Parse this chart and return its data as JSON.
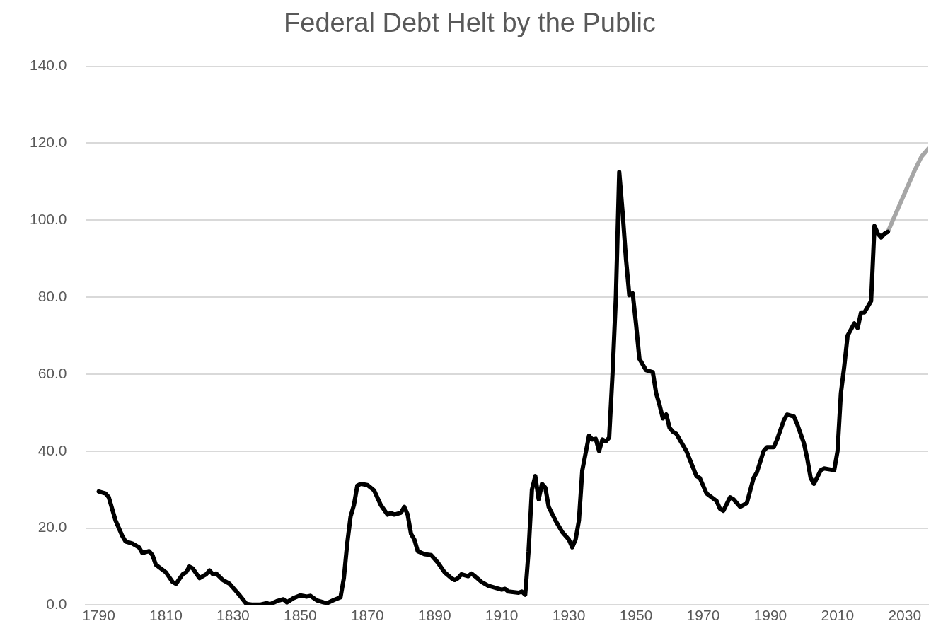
{
  "chart_data": {
    "type": "line",
    "title": "Federal Debt Helt by the Public",
    "xlim": [
      1786,
      2037
    ],
    "xticks": [
      1790,
      1810,
      1830,
      1850,
      1870,
      1890,
      1910,
      1930,
      1950,
      1970,
      1990,
      2010,
      2030
    ],
    "ylim": [
      0,
      140
    ],
    "yticks": [
      {
        "value": 0,
        "label": "0.0"
      },
      {
        "value": 20,
        "label": "20.0"
      },
      {
        "value": 40,
        "label": "40.0"
      },
      {
        "value": 60,
        "label": "60.0"
      },
      {
        "value": 80,
        "label": "80.0"
      },
      {
        "value": 100,
        "label": "100.0"
      },
      {
        "value": 120,
        "label": "120.0"
      },
      {
        "value": 140,
        "label": "140.0"
      }
    ],
    "grid": "y",
    "legend": false,
    "marker": "none",
    "line_style": "solid",
    "series": [
      {
        "color": "#000000",
        "x": [
          1790,
          1792,
          1793,
          1795,
          1797,
          1798,
          1800,
          1802,
          1803,
          1805,
          1806,
          1807,
          1810,
          1812,
          1813,
          1815,
          1816,
          1817,
          1818,
          1820,
          1822,
          1823,
          1824,
          1825,
          1827,
          1829,
          1831,
          1832,
          1834,
          1836,
          1838,
          1840,
          1841,
          1843,
          1845,
          1846,
          1848,
          1850,
          1852,
          1853,
          1855,
          1857,
          1858,
          1860,
          1862,
          1863,
          1864,
          1865,
          1866,
          1867,
          1868,
          1870,
          1872,
          1874,
          1876,
          1877,
          1878,
          1880,
          1881,
          1882,
          1883,
          1884,
          1885,
          1887,
          1889,
          1891,
          1893,
          1895,
          1896,
          1897,
          1898,
          1900,
          1901,
          1902,
          1904,
          1906,
          1910,
          1911,
          1912,
          1915,
          1916,
          1917,
          1918,
          1919,
          1920,
          1921,
          1922,
          1923,
          1924,
          1926,
          1928,
          1930,
          1931,
          1932,
          1933,
          1934,
          1936,
          1937,
          1938,
          1939,
          1940,
          1941,
          1942,
          1943,
          1944,
          1945,
          1946,
          1947,
          1948,
          1949,
          1950,
          1951,
          1953,
          1955,
          1956,
          1957,
          1958,
          1959,
          1960,
          1961,
          1962,
          1965,
          1968,
          1969,
          1971,
          1974,
          1975,
          1976,
          1978,
          1979,
          1981,
          1983,
          1985,
          1986,
          1988,
          1989,
          1991,
          1992,
          1994,
          1995,
          1997,
          1998,
          2000,
          2001,
          2002,
          2003,
          2005,
          2006,
          2008,
          2009,
          2010,
          2011,
          2012,
          2013,
          2015,
          2016,
          2017,
          2018,
          2020,
          2021,
          2022,
          2023,
          2024,
          2025
        ],
        "values": [
          29.5,
          29,
          28,
          22,
          18,
          16.5,
          16,
          15,
          13.5,
          14,
          13,
          10.5,
          8.5,
          6,
          5.5,
          8,
          8.5,
          10,
          9.5,
          7,
          8,
          9,
          8,
          8.2,
          6.5,
          5.5,
          3.5,
          2.5,
          0.3,
          0.1,
          0.1,
          0.5,
          0.2,
          1,
          1.5,
          0.7,
          1.8,
          2.5,
          2.2,
          2.4,
          1.2,
          0.7,
          0.5,
          1.3,
          2,
          7,
          16,
          23,
          26,
          31,
          31.5,
          31.2,
          29.8,
          26,
          23.5,
          24,
          23.5,
          24,
          25.5,
          23.5,
          18.5,
          17,
          14,
          13.2,
          13,
          11,
          8.5,
          7,
          6.5,
          7,
          8,
          7.5,
          8.2,
          7.5,
          6,
          5,
          4,
          4.2,
          3.5,
          3.2,
          3.5,
          2.7,
          14,
          30,
          33.5,
          27.5,
          31.5,
          30.5,
          25.5,
          22,
          19,
          17,
          15,
          17,
          22,
          35,
          44,
          43,
          43.2,
          40,
          43,
          42.5,
          43.5,
          60,
          80,
          112.5,
          102,
          90,
          80.5,
          81,
          73,
          64,
          61,
          60.5,
          55,
          52,
          48.5,
          49.5,
          46,
          45,
          44.5,
          40,
          33.5,
          33,
          29,
          27,
          25,
          24.5,
          28,
          27.5,
          25.5,
          26.5,
          33,
          34.5,
          40,
          41,
          41,
          43,
          48,
          49.5,
          49,
          47,
          42,
          38,
          33,
          31.5,
          35,
          35.5,
          35.2,
          35,
          40,
          55,
          62,
          70,
          73.2,
          72,
          76,
          76,
          79,
          98.5,
          96.5,
          95.5,
          96.5,
          97
        ]
      },
      {
        "color": "#a6a6a6",
        "x": [
          2025,
          2027,
          2030,
          2033,
          2035,
          2037
        ],
        "values": [
          97,
          101,
          107,
          113,
          116.5,
          118.5
        ]
      }
    ]
  }
}
